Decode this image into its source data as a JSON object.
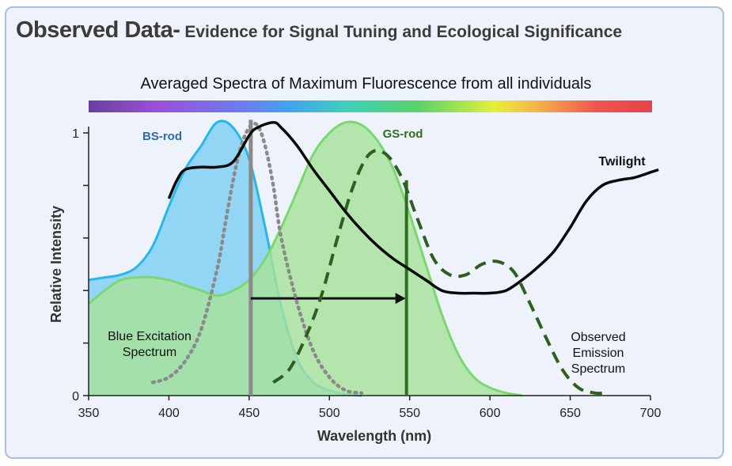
{
  "header": {
    "title_main": "Observed Data-",
    "title_sub": "Evidence for Signal Tuning and Ecological Significance"
  },
  "spectrum_bar_title": "Averaged Spectra of Maximum Fluorescence from all individuals",
  "chart_data": {
    "type": "line",
    "title": "Averaged Spectra of Maximum Fluorescence from all individuals",
    "xlabel": "Wavelength (nm)",
    "ylabel": "Relative Intensity",
    "xlim": [
      350,
      700
    ],
    "ylim": [
      0,
      1
    ],
    "x_ticks": [
      350,
      400,
      450,
      500,
      550,
      600,
      650,
      700
    ],
    "y_ticks": [
      0,
      0.2,
      0.4,
      0.6,
      0.8,
      1
    ],
    "y_tick_labels": [
      "0",
      "",
      "",
      "",
      "",
      "1"
    ],
    "colors": {
      "bs_fill": "#8dd3f3",
      "bs_line": "#27b7ea",
      "gs_fill": "#a7e29b",
      "gs_line": "#7bd86e",
      "twilight": "#0a0a0a",
      "excitation": "#8a8a8a",
      "emission": "#2f5e1e",
      "peak_blue": "#8a8a8a",
      "peak_green": "#2f6e21",
      "arrow": "#111111"
    },
    "series": [
      {
        "name": "BS-rod",
        "label": "BS-rod",
        "style": "filled-area",
        "points": [
          [
            350,
            0.44
          ],
          [
            360,
            0.45
          ],
          [
            370,
            0.46
          ],
          [
            380,
            0.49
          ],
          [
            390,
            0.57
          ],
          [
            400,
            0.72
          ],
          [
            410,
            0.86
          ],
          [
            420,
            0.95
          ],
          [
            430,
            1.04
          ],
          [
            440,
            1.02
          ],
          [
            450,
            0.9
          ],
          [
            460,
            0.64
          ],
          [
            470,
            0.34
          ],
          [
            480,
            0.14
          ],
          [
            490,
            0.05
          ],
          [
            500,
            0.02
          ],
          [
            510,
            0.005
          ],
          [
            520,
            0
          ]
        ]
      },
      {
        "name": "GS-rod",
        "label": "GS-rod",
        "style": "filled-area",
        "points": [
          [
            350,
            0.35
          ],
          [
            360,
            0.4
          ],
          [
            370,
            0.44
          ],
          [
            380,
            0.45
          ],
          [
            390,
            0.45
          ],
          [
            400,
            0.44
          ],
          [
            410,
            0.42
          ],
          [
            420,
            0.4
          ],
          [
            430,
            0.38
          ],
          [
            440,
            0.4
          ],
          [
            450,
            0.44
          ],
          [
            460,
            0.52
          ],
          [
            470,
            0.64
          ],
          [
            480,
            0.78
          ],
          [
            490,
            0.92
          ],
          [
            500,
            1.0
          ],
          [
            510,
            1.04
          ],
          [
            520,
            1.03
          ],
          [
            530,
            0.97
          ],
          [
            540,
            0.86
          ],
          [
            550,
            0.69
          ],
          [
            560,
            0.5
          ],
          [
            570,
            0.31
          ],
          [
            580,
            0.16
          ],
          [
            590,
            0.07
          ],
          [
            600,
            0.03
          ],
          [
            610,
            0.01
          ],
          [
            620,
            0
          ]
        ]
      },
      {
        "name": "Twilight",
        "label": "Twilight",
        "style": "solid",
        "points": [
          [
            400,
            0.75
          ],
          [
            405,
            0.82
          ],
          [
            410,
            0.86
          ],
          [
            420,
            0.87
          ],
          [
            430,
            0.87
          ],
          [
            440,
            0.89
          ],
          [
            450,
            0.99
          ],
          [
            455,
            1.02
          ],
          [
            465,
            1.04
          ],
          [
            470,
            1.02
          ],
          [
            480,
            0.95
          ],
          [
            490,
            0.86
          ],
          [
            500,
            0.78
          ],
          [
            510,
            0.7
          ],
          [
            520,
            0.63
          ],
          [
            530,
            0.57
          ],
          [
            540,
            0.52
          ],
          [
            550,
            0.48
          ],
          [
            560,
            0.44
          ],
          [
            570,
            0.4
          ],
          [
            580,
            0.39
          ],
          [
            590,
            0.39
          ],
          [
            600,
            0.39
          ],
          [
            610,
            0.4
          ],
          [
            620,
            0.44
          ],
          [
            630,
            0.49
          ],
          [
            640,
            0.55
          ],
          [
            650,
            0.64
          ],
          [
            660,
            0.74
          ],
          [
            670,
            0.8
          ],
          [
            680,
            0.82
          ],
          [
            690,
            0.83
          ],
          [
            700,
            0.85
          ],
          [
            705,
            0.86
          ]
        ]
      },
      {
        "name": "Blue Excitation Spectrum",
        "label_lines": [
          "Blue Excitation",
          "Spectrum"
        ],
        "style": "dotted",
        "points": [
          [
            390,
            0.05
          ],
          [
            400,
            0.07
          ],
          [
            410,
            0.13
          ],
          [
            420,
            0.25
          ],
          [
            430,
            0.48
          ],
          [
            435,
            0.65
          ],
          [
            440,
            0.82
          ],
          [
            445,
            0.95
          ],
          [
            450,
            1.02
          ],
          [
            455,
            1.03
          ],
          [
            460,
            0.95
          ],
          [
            465,
            0.8
          ],
          [
            470,
            0.6
          ],
          [
            480,
            0.35
          ],
          [
            490,
            0.17
          ],
          [
            500,
            0.07
          ],
          [
            510,
            0.02
          ],
          [
            520,
            0.01
          ]
        ]
      },
      {
        "name": "Observed Emission Spectrum",
        "label_lines": [
          "Observed",
          "Emission",
          "Spectrum"
        ],
        "style": "dashed",
        "points": [
          [
            465,
            0.05
          ],
          [
            475,
            0.1
          ],
          [
            485,
            0.22
          ],
          [
            495,
            0.38
          ],
          [
            505,
            0.6
          ],
          [
            515,
            0.8
          ],
          [
            525,
            0.92
          ],
          [
            535,
            0.92
          ],
          [
            545,
            0.83
          ],
          [
            555,
            0.67
          ],
          [
            565,
            0.52
          ],
          [
            575,
            0.46
          ],
          [
            585,
            0.46
          ],
          [
            595,
            0.5
          ],
          [
            605,
            0.51
          ],
          [
            615,
            0.47
          ],
          [
            625,
            0.35
          ],
          [
            635,
            0.22
          ],
          [
            645,
            0.1
          ],
          [
            655,
            0.03
          ],
          [
            665,
            0.01
          ],
          [
            672,
            0.01
          ]
        ]
      }
    ],
    "peaks": [
      {
        "name": "excitation-peak",
        "x": 451,
        "y_top": 1.05
      },
      {
        "name": "emission-peak",
        "x": 548,
        "y_top": 0.82
      }
    ],
    "shift_arrow": {
      "from_x": 451,
      "to_x": 548,
      "y": 0.37
    }
  }
}
